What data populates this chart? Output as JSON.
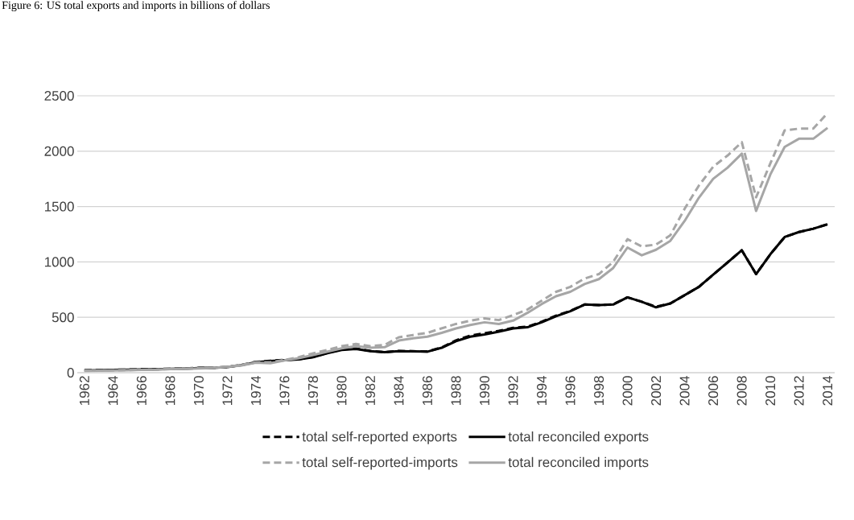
{
  "chart_data": {
    "type": "line",
    "title": "Figure 6: US total exports and imports in billions of dollars",
    "x": [
      1962,
      1963,
      1964,
      1965,
      1966,
      1967,
      1968,
      1969,
      1970,
      1971,
      1972,
      1973,
      1974,
      1975,
      1976,
      1977,
      1978,
      1979,
      1980,
      1981,
      1982,
      1983,
      1984,
      1985,
      1986,
      1987,
      1988,
      1989,
      1990,
      1991,
      1992,
      1993,
      1994,
      1995,
      1996,
      1997,
      1998,
      1999,
      2000,
      2001,
      2002,
      2003,
      2004,
      2005,
      2006,
      2007,
      2008,
      2009,
      2010,
      2011,
      2012,
      2013,
      2014
    ],
    "xlim": [
      1961.5,
      2014.5
    ],
    "xticks": [
      1962,
      1964,
      1966,
      1968,
      1970,
      1972,
      1974,
      1976,
      1978,
      1980,
      1982,
      1984,
      1986,
      1988,
      1990,
      1992,
      1994,
      1996,
      1998,
      2000,
      2002,
      2004,
      2006,
      2008,
      2010,
      2012,
      2014
    ],
    "ylim": [
      0,
      2500
    ],
    "yticks": [
      0,
      500,
      1000,
      1500,
      2000,
      2500
    ],
    "grid": "y",
    "legend": "bottom",
    "series": [
      {
        "name": "total self-reported exports",
        "color": "#000000",
        "line_style": "dashed",
        "values": [
          21,
          23,
          26,
          28,
          30,
          32,
          35,
          38,
          43,
          45,
          51,
          70,
          98,
          107,
          115,
          121,
          142,
          178,
          210,
          218,
          197,
          186,
          196,
          194,
          191,
          228,
          292,
          335,
          355,
          378,
          405,
          415,
          460,
          515,
          558,
          615,
          610,
          617,
          680,
          640,
          595,
          625,
          700,
          775,
          885,
          995,
          1105,
          890,
          1070,
          1225,
          1270,
          1300,
          1340
        ]
      },
      {
        "name": "total reconciled exports",
        "color": "#000000",
        "line_style": "solid",
        "values": [
          20,
          22,
          25,
          27,
          29,
          31,
          34,
          37,
          42,
          44,
          50,
          68,
          95,
          105,
          113,
          120,
          140,
          175,
          205,
          215,
          195,
          185,
          195,
          193,
          190,
          225,
          285,
          325,
          345,
          370,
          400,
          410,
          455,
          510,
          555,
          615,
          610,
          615,
          680,
          640,
          590,
          625,
          700,
          775,
          885,
          995,
          1105,
          890,
          1070,
          1225,
          1270,
          1300,
          1340
        ]
      },
      {
        "name": "total self-reported-imports",
        "color": "#a6a6a6",
        "line_style": "dashed",
        "values": [
          18,
          19,
          20,
          23,
          26,
          28,
          33,
          36,
          40,
          45,
          55,
          70,
          95,
          95,
          115,
          140,
          175,
          205,
          240,
          260,
          240,
          250,
          320,
          340,
          360,
          400,
          440,
          470,
          490,
          475,
          520,
          570,
          650,
          730,
          775,
          850,
          890,
          1000,
          1205,
          1140,
          1157,
          1240,
          1480,
          1690,
          1860,
          1960,
          2081,
          1583,
          1890,
          2188,
          2203,
          2203,
          2343
        ]
      },
      {
        "name": "total reconciled imports",
        "color": "#a6a6a6",
        "line_style": "solid",
        "values": [
          17,
          18,
          19,
          22,
          25,
          27,
          32,
          35,
          38,
          43,
          52,
          66,
          90,
          85,
          110,
          130,
          160,
          190,
          220,
          240,
          225,
          230,
          290,
          310,
          325,
          360,
          400,
          430,
          455,
          440,
          470,
          540,
          620,
          690,
          730,
          800,
          845,
          945,
          1130,
          1060,
          1110,
          1190,
          1370,
          1580,
          1750,
          1850,
          1978,
          1460,
          1790,
          2038,
          2112,
          2112,
          2210
        ]
      }
    ]
  }
}
